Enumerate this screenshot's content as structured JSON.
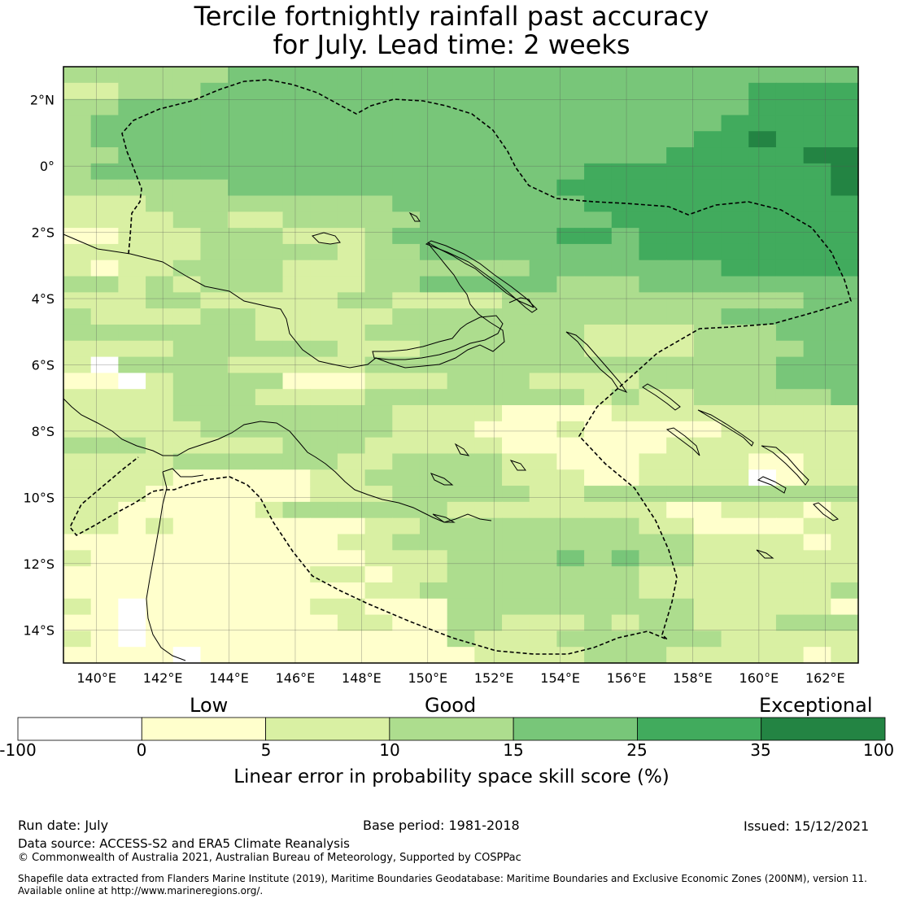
{
  "title_line1": "Tercile fortnightly rainfall past accuracy",
  "title_line2": "for July. Lead time: 2 weeks",
  "map": {
    "lon_range": [
      139,
      163
    ],
    "lat_range": [
      -15,
      3
    ],
    "lon_ticks": [
      140,
      142,
      144,
      146,
      148,
      150,
      152,
      154,
      156,
      158,
      160,
      162
    ],
    "lon_labels": [
      "140°E",
      "142°E",
      "144°E",
      "146°E",
      "148°E",
      "150°E",
      "152°E",
      "154°E",
      "156°E",
      "158°E",
      "160°E",
      "162°E"
    ],
    "lat_ticks": [
      2,
      0,
      -2,
      -4,
      -6,
      -8,
      -10,
      -12,
      -14
    ],
    "lat_labels": [
      "2°N",
      "0°",
      "2°S",
      "4°S",
      "6°S",
      "8°S",
      "10°S",
      "12°S",
      "14°S"
    ],
    "grid_rows": [
      "33333344444444444444444444444",
      "22333444444444444444444445555",
      "33444444444444444444444445555",
      "34444444444444444444444455555",
      "34444444444444444444444556555",
      "33444444444444444444445555566",
      "34444444444444444445555555556",
      "33333344444444444455555555556",
      "22233333333344444445555555555",
      "22223322333334444444555555555",
      "11222333222344444455455555555",
      "22222333332334444444455555555",
      "21223333222333333444444455555",
      "33232333222334444433344444444",
      "22233222223322223333333333344",
      "32222332222233333333333344444",
      "33333332222333333332222333444",
      "22223333332223333332222333344",
      "20333322222333333333333333444",
      "11023333111222333222233333444",
      "22223332222333333332322333334",
      "22223333333322221111222222222",
      "22222333333322211121111122222",
      "33322222333222221111112222222",
      "22223333332233332211122221122",
      "22221111122333332221122220122",
      "22211111122233333223333333333",
      "22111112333333222222221122212",
      "22121111111223333333322111122",
      "11111111112233333333333222212",
      "21111111111222333343433222222",
      "11111111122122333333322222222",
      "11111111111223333333322222223",
      "21011111122111333333333222221",
      "11011111112211332223233222333",
      "21011111111111322233333322222",
      "11110111111111122223332222212"
    ],
    "colors": [
      "#ffffff",
      "#ffffcc",
      "#d9f0a3",
      "#addd8e",
      "#78c679",
      "#41ab5d",
      "#238443"
    ],
    "places": [
      "coastline",
      "maritime-boundary"
    ]
  },
  "legend": {
    "low": "Low",
    "good": "Good",
    "exceptional": "Exceptional",
    "ticks": [
      "-100",
      "0",
      "5",
      "10",
      "15",
      "25",
      "35",
      "100"
    ],
    "colors": [
      "#ffffff",
      "#ffffcc",
      "#d9f0a3",
      "#addd8e",
      "#78c679",
      "#41ab5d",
      "#238443"
    ],
    "title": "Linear error in probability space skill score (%)"
  },
  "footer": {
    "run_date": "Run date: July",
    "base_period": "Base period: 1981-2018",
    "issued": "Issued: 15/12/2021",
    "data_source": "Data source: ACCESS-S2 and ERA5 Climate Reanalysis",
    "copyright": "© Commonwealth of Australia 2021, Australian Bureau of Meteorology, Supported by COSPPac",
    "shapefile_line1": "Shapefile data extracted from Flanders Marine Institute (2019), Maritime Boundaries Geodatabase: Maritime Boundaries and Exclusive Economic Zones (200NM), version 11.",
    "shapefile_line2": "Available online at http://www.marineregions.org/."
  }
}
